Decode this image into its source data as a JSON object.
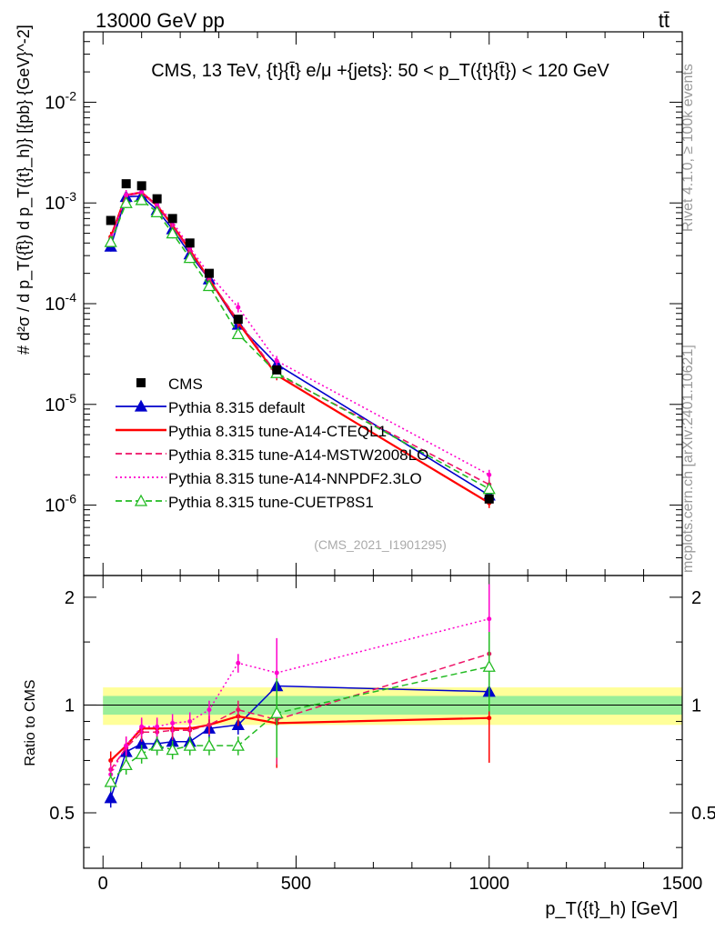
{
  "header": {
    "energy_label": "13000 GeV pp",
    "process_label": "tt̄"
  },
  "side_labels": {
    "rivet": "Rivet 4.1.0, ≥ 100k events",
    "mcplots": "mcplots.cern.ch [arXiv:2401.10621]"
  },
  "chart_data": [
    {
      "type": "line",
      "panel": "main",
      "title": "CMS, 13 TeV, {t}{t̄} e/μ +{jets}: 50 <  p_T({t}{t̄}) < 120 GeV",
      "ylabel": "# d²σ / d p_T({t̄}) d p_T({t}_h)} [{pb} {GeV}^-2]",
      "xlabel": "p_T({t}_h) [GeV]",
      "yscale": "log",
      "xlim": [
        -50,
        1500
      ],
      "ylim": [
        2e-07,
        0.05
      ],
      "y_ticks": [
        "10^-6",
        "10^-5",
        "10^-4",
        "10^-3",
        "10^-2"
      ],
      "watermark": "(CMS_2021_I1901295)",
      "x": [
        20,
        60,
        100,
        140,
        180,
        225,
        275,
        350,
        450,
        1000
      ],
      "cms": {
        "name": "CMS",
        "color": "#000000",
        "values": [
          0.00067,
          0.00155,
          0.00148,
          0.0011,
          0.0007,
          0.0004,
          0.0002,
          7e-05,
          2.2e-05,
          1.15e-06
        ]
      },
      "series": [
        {
          "name": "Pythia 8.315 default",
          "color": "#0000cc",
          "style": "solid-triangle",
          "values": [
            0.00037,
            0.00115,
            0.00117,
            0.00085,
            0.00055,
            0.00031,
            0.000175,
            6.2e-05,
            2.5e-05,
            1.25e-06
          ]
        },
        {
          "name": "Pythia 8.315 tune-A14-CTEQL1",
          "color": "#ff0000",
          "style": "solid",
          "values": [
            0.00046,
            0.0012,
            0.00127,
            0.00094,
            0.0006,
            0.00034,
            0.000175,
            6.5e-05,
            1.95e-05,
            1.05e-06
          ]
        },
        {
          "name": "Pythia 8.315 tune-A14-MSTW2008LO",
          "color": "#ee1166",
          "style": "dashed",
          "values": [
            0.00044,
            0.00118,
            0.00125,
            0.00093,
            0.00059,
            0.00033,
            0.000175,
            6.8e-05,
            2e-05,
            1.6e-06
          ]
        },
        {
          "name": "Pythia 8.315 tune-A14-NNPDF2.3LO",
          "color": "#ff00cc",
          "style": "dotted",
          "values": [
            0.00043,
            0.0012,
            0.00129,
            0.00096,
            0.00065,
            0.00036,
            0.000195,
            9.2e-05,
            2.7e-05,
            2e-06
          ]
        },
        {
          "name": "Pythia 8.315 tune-CUETP8S1",
          "color": "#22bb22",
          "style": "dashed-open-triangle",
          "values": [
            0.00041,
            0.001,
            0.00107,
            0.00081,
            0.0005,
            0.000285,
            0.00015,
            5e-05,
            2.05e-05,
            1.45e-06
          ]
        }
      ]
    },
    {
      "type": "line",
      "panel": "ratio",
      "ylabel": "Ratio to CMS",
      "xlabel": "p_T({t}_h) [GeV]",
      "xlim": [
        -50,
        1500
      ],
      "ylim": [
        0.35,
        2.3
      ],
      "y_ticks": [
        0.5,
        1,
        2
      ],
      "x_ticks": [
        0,
        500,
        1000,
        1500
      ],
      "x": [
        20,
        60,
        100,
        140,
        180,
        225,
        275,
        350,
        450,
        1000
      ],
      "band": {
        "green_halfwidth": 0.06,
        "yellow_halfwidth": 0.12
      },
      "series": [
        {
          "name": "Pythia 8.315 default",
          "color": "#0000cc",
          "values": [
            0.55,
            0.74,
            0.78,
            0.78,
            0.79,
            0.79,
            0.86,
            0.88,
            1.13,
            1.09
          ]
        },
        {
          "name": "Pythia 8.315 tune-A14-CTEQL1",
          "color": "#ff0000",
          "values": [
            0.7,
            0.77,
            0.86,
            0.86,
            0.86,
            0.86,
            0.88,
            0.93,
            0.89,
            0.92
          ]
        },
        {
          "name": "Pythia 8.315 tune-A14-MSTW2008LO",
          "color": "#ee1166",
          "values": [
            0.66,
            0.76,
            0.84,
            0.84,
            0.85,
            0.85,
            0.88,
            0.97,
            0.91,
            1.39
          ]
        },
        {
          "name": "Pythia 8.315 tune-A14-NNPDF2.3LO",
          "color": "#ff00cc",
          "values": [
            0.64,
            0.77,
            0.87,
            0.87,
            0.89,
            0.9,
            0.97,
            1.31,
            1.23,
            1.74
          ]
        },
        {
          "name": "Pythia 8.315 tune-CUETP8S1",
          "color": "#22bb22",
          "values": [
            0.61,
            0.68,
            0.73,
            0.77,
            0.75,
            0.77,
            0.77,
            0.77,
            0.95,
            1.28
          ]
        }
      ]
    }
  ]
}
